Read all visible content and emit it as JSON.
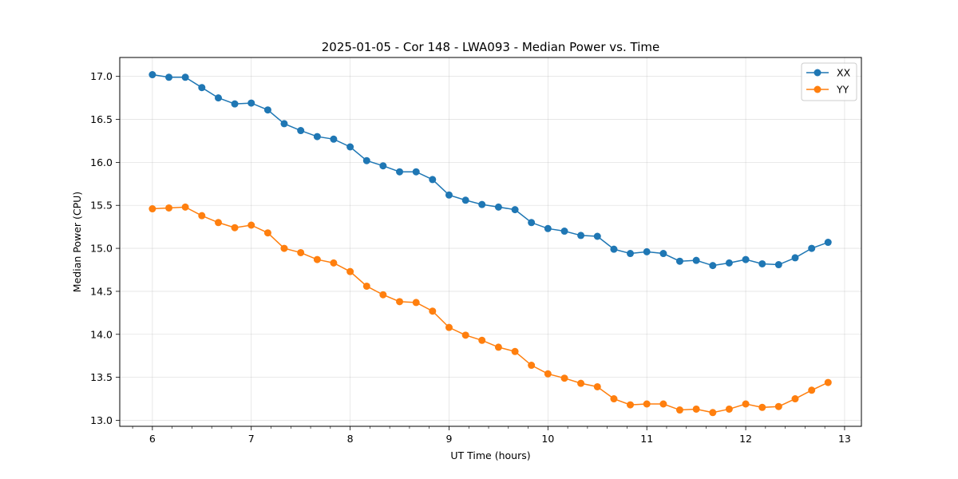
{
  "chart_data": {
    "type": "line",
    "title": "2025-01-05 - Cor 148 - LWA093 - Median Power vs. Time",
    "xlabel": "UT Time (hours)",
    "ylabel": "Median Power (CPU)",
    "xlim": [
      5.67,
      13.17
    ],
    "ylim": [
      12.93,
      17.22
    ],
    "xticks": [
      6,
      7,
      8,
      9,
      10,
      11,
      12,
      13
    ],
    "xtick_labels": [
      "6",
      "7",
      "8",
      "9",
      "10",
      "11",
      "12",
      "13"
    ],
    "yticks": [
      13.0,
      13.5,
      14.0,
      14.5,
      15.0,
      15.5,
      16.0,
      16.5,
      17.0
    ],
    "ytick_labels": [
      "13.0",
      "13.5",
      "14.0",
      "14.5",
      "15.0",
      "15.5",
      "16.0",
      "16.5",
      "17.0"
    ],
    "grid": true,
    "legend_position": "top-right",
    "x": [
      6.0,
      6.167,
      6.333,
      6.5,
      6.667,
      6.833,
      7.0,
      7.167,
      7.333,
      7.5,
      7.667,
      7.833,
      8.0,
      8.167,
      8.333,
      8.5,
      8.667,
      8.833,
      9.0,
      9.167,
      9.333,
      9.5,
      9.667,
      9.833,
      10.0,
      10.167,
      10.333,
      10.5,
      10.667,
      10.833,
      11.0,
      11.167,
      11.333,
      11.5,
      11.667,
      11.833,
      12.0,
      12.167,
      12.333,
      12.5,
      12.667,
      12.833
    ],
    "series": [
      {
        "name": "XX",
        "color": "#1f77b4",
        "values": [
          17.02,
          16.99,
          16.99,
          16.87,
          16.75,
          16.68,
          16.69,
          16.61,
          16.45,
          16.37,
          16.3,
          16.27,
          16.18,
          16.02,
          15.96,
          15.89,
          15.89,
          15.8,
          15.62,
          15.56,
          15.51,
          15.48,
          15.45,
          15.3,
          15.23,
          15.2,
          15.15,
          15.14,
          14.99,
          14.94,
          14.96,
          14.94,
          14.85,
          14.86,
          14.8,
          14.83,
          14.87,
          14.82,
          14.81,
          14.89,
          15.0,
          15.07
        ]
      },
      {
        "name": "YY",
        "color": "#ff7f0e",
        "values": [
          15.46,
          15.47,
          15.48,
          15.38,
          15.3,
          15.24,
          15.27,
          15.18,
          15.0,
          14.95,
          14.87,
          14.83,
          14.73,
          14.56,
          14.46,
          14.38,
          14.37,
          14.27,
          14.08,
          13.99,
          13.93,
          13.85,
          13.8,
          13.64,
          13.54,
          13.49,
          13.43,
          13.39,
          13.25,
          13.18,
          13.19,
          13.19,
          13.12,
          13.13,
          13.09,
          13.13,
          13.19,
          13.15,
          13.16,
          13.25,
          13.35,
          13.44
        ]
      }
    ]
  }
}
